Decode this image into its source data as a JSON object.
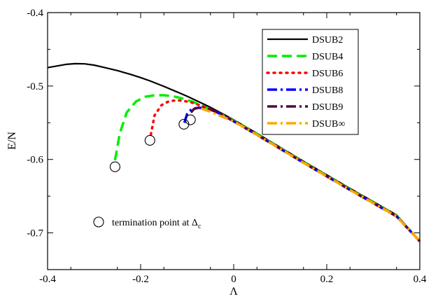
{
  "chart_data": {
    "type": "line",
    "title": "",
    "xlabel": "Λ",
    "ylabel": "E/N",
    "xlim": [
      -0.4,
      0.4
    ],
    "ylim": [
      -0.75,
      -0.4
    ],
    "grid": false,
    "legend_position": "top-right",
    "xticks": [
      -0.4,
      -0.2,
      0,
      0.2,
      0.4
    ],
    "xtick_labels": [
      "-0.4",
      "-0.2",
      "0",
      "0.2",
      "0.4"
    ],
    "yticks": [
      -0.4,
      -0.5,
      -0.6,
      -0.7
    ],
    "ytick_labels": [
      "-0.4",
      "-0.5",
      "-0.6",
      "-0.7"
    ],
    "series": [
      {
        "name": "DSUB2",
        "color": "#000000",
        "style": "solid",
        "x": [
          -0.4,
          -0.36,
          -0.34,
          -0.32,
          -0.3,
          -0.28,
          -0.25,
          -0.22,
          -0.2,
          -0.18,
          -0.15,
          -0.12,
          -0.1,
          -0.08,
          -0.05,
          -0.02,
          0,
          0.05,
          0.1,
          0.15,
          0.2,
          0.25,
          0.3,
          0.35,
          0.4
        ],
        "y": [
          -0.475,
          -0.4705,
          -0.4695,
          -0.4698,
          -0.4715,
          -0.4745,
          -0.479,
          -0.4845,
          -0.4885,
          -0.493,
          -0.5005,
          -0.5085,
          -0.514,
          -0.52,
          -0.529,
          -0.539,
          -0.546,
          -0.5645,
          -0.5835,
          -0.6025,
          -0.621,
          -0.6395,
          -0.6575,
          -0.6755,
          -0.7115
        ]
      },
      {
        "name": "DSUB4",
        "color": "#00ee00",
        "style": "dashed",
        "x": [
          -0.255,
          -0.245,
          -0.23,
          -0.21,
          -0.19,
          -0.17,
          -0.15,
          -0.13,
          -0.11,
          -0.09,
          -0.06,
          -0.03,
          0,
          0.05,
          0.1,
          0.15,
          0.2,
          0.25,
          0.3,
          0.35,
          0.4
        ],
        "y": [
          -0.601,
          -0.565,
          -0.536,
          -0.521,
          -0.5145,
          -0.5125,
          -0.5125,
          -0.514,
          -0.517,
          -0.521,
          -0.529,
          -0.5375,
          -0.547,
          -0.5655,
          -0.5845,
          -0.6035,
          -0.622,
          -0.6405,
          -0.6585,
          -0.6765,
          -0.7115
        ]
      },
      {
        "name": "DSUB6",
        "color": "#ff0000",
        "style": "dotted",
        "x": [
          -0.178,
          -0.17,
          -0.155,
          -0.14,
          -0.125,
          -0.11,
          -0.09,
          -0.06,
          -0.03,
          0,
          0.05,
          0.1,
          0.15,
          0.2,
          0.25,
          0.3,
          0.35,
          0.4
        ],
        "y": [
          -0.566,
          -0.54,
          -0.526,
          -0.521,
          -0.5195,
          -0.52,
          -0.5225,
          -0.529,
          -0.538,
          -0.5475,
          -0.566,
          -0.585,
          -0.604,
          -0.6225,
          -0.641,
          -0.659,
          -0.677,
          -0.7115
        ]
      },
      {
        "name": "DSUB8",
        "color": "#0000ff",
        "style": "dashdot",
        "x": [
          -0.106,
          -0.1,
          -0.09,
          -0.075,
          -0.06,
          -0.04,
          -0.02,
          0,
          0.05,
          0.1,
          0.15,
          0.2,
          0.25,
          0.3,
          0.35,
          0.4
        ],
        "y": [
          -0.55,
          -0.538,
          -0.531,
          -0.5295,
          -0.5305,
          -0.5345,
          -0.541,
          -0.548,
          -0.5665,
          -0.5855,
          -0.6045,
          -0.623,
          -0.6415,
          -0.6595,
          -0.6775,
          -0.7115
        ]
      },
      {
        "name": "DSUB9",
        "color": "#550044",
        "style": "dashdot",
        "x": [
          -0.092,
          -0.085,
          -0.075,
          -0.06,
          -0.04,
          -0.02,
          0,
          0.05,
          0.1,
          0.15,
          0.2,
          0.25,
          0.3,
          0.35,
          0.4
        ],
        "y": [
          -0.536,
          -0.531,
          -0.5295,
          -0.5305,
          -0.5345,
          -0.541,
          -0.548,
          -0.5665,
          -0.5855,
          -0.6045,
          -0.623,
          -0.6415,
          -0.6595,
          -0.6775,
          -0.7115
        ]
      },
      {
        "name": "DSUB∞",
        "color": "#ffa500",
        "style": "dashdot",
        "x": [
          -0.07,
          -0.05,
          -0.03,
          -0.01,
          0,
          0.05,
          0.1,
          0.15,
          0.2,
          0.25,
          0.3,
          0.35,
          0.4
        ],
        "y": [
          -0.5305,
          -0.535,
          -0.5405,
          -0.5455,
          -0.548,
          -0.5665,
          -0.5855,
          -0.6045,
          -0.623,
          -0.6415,
          -0.6595,
          -0.6775,
          -0.7115
        ]
      }
    ],
    "termination_points": {
      "x": [
        -0.255,
        -0.18,
        -0.107,
        -0.093
      ],
      "y": [
        -0.61,
        -0.574,
        -0.552,
        -0.546
      ]
    },
    "annotation": {
      "text": "termination point at Δ",
      "subscript": "c",
      "marker": "circle"
    }
  }
}
